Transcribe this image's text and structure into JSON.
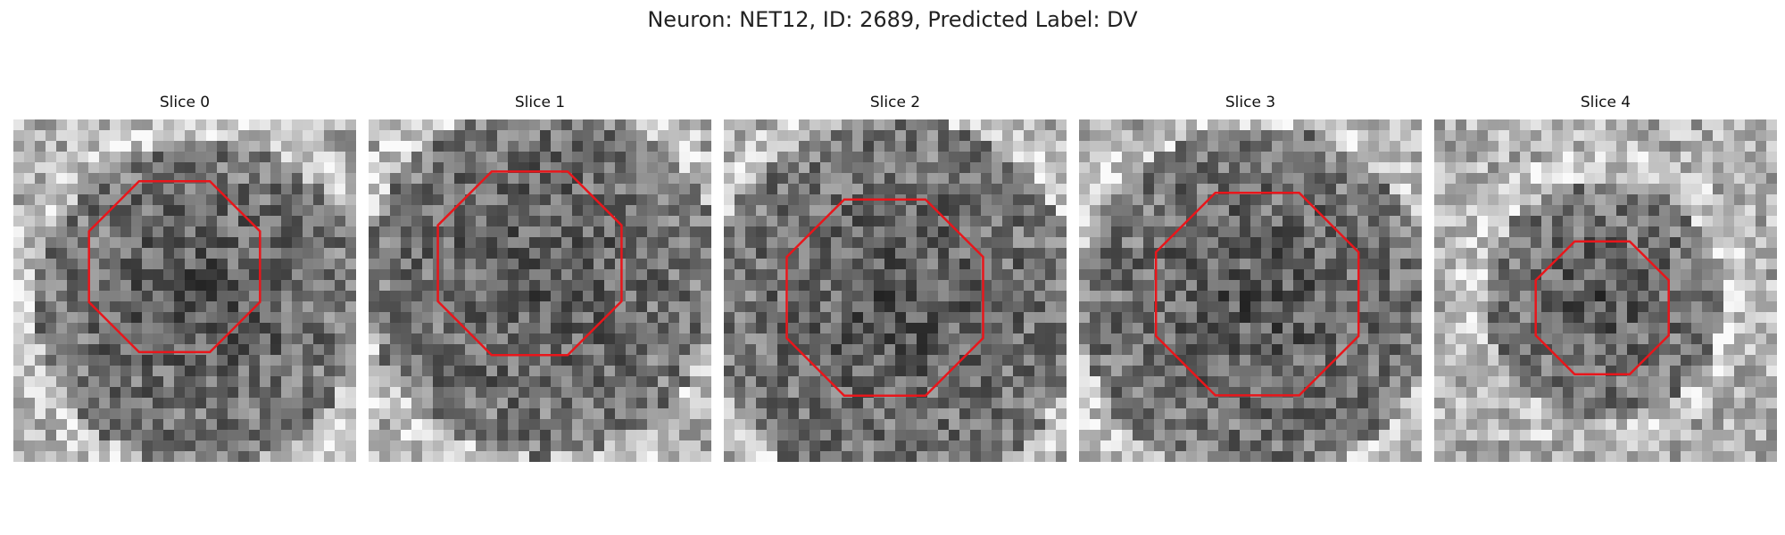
{
  "suptitle": "Neuron: NET12, ID: 2689, Predicted Label: DV",
  "roi_color": "#e8161b",
  "panels": [
    {
      "title": "Slice 0",
      "seed": 11,
      "blob_center": [
        5.3,
        5.2
      ],
      "blob_radius": 4.8,
      "roi_center": [
        0.47,
        0.43
      ],
      "roi_radius": 0.27
    },
    {
      "title": "Slice 1",
      "seed": 22,
      "blob_center": [
        4.9,
        4.5
      ],
      "blob_radius": 5.2,
      "roi_center": [
        0.47,
        0.42
      ],
      "roi_radius": 0.29
    },
    {
      "title": "Slice 2",
      "seed": 33,
      "blob_center": [
        4.8,
        5.3
      ],
      "blob_radius": 5.5,
      "roi_center": [
        0.47,
        0.52
      ],
      "roi_radius": 0.31
    },
    {
      "title": "Slice 3",
      "seed": 44,
      "blob_center": [
        5.0,
        5.2
      ],
      "blob_radius": 5.2,
      "roi_center": [
        0.52,
        0.51
      ],
      "roi_radius": 0.32
    },
    {
      "title": "Slice 4",
      "seed": 55,
      "blob_center": [
        4.8,
        5.1
      ],
      "blob_radius": 3.5,
      "roi_center": [
        0.49,
        0.55
      ],
      "roi_radius": 0.21
    }
  ]
}
